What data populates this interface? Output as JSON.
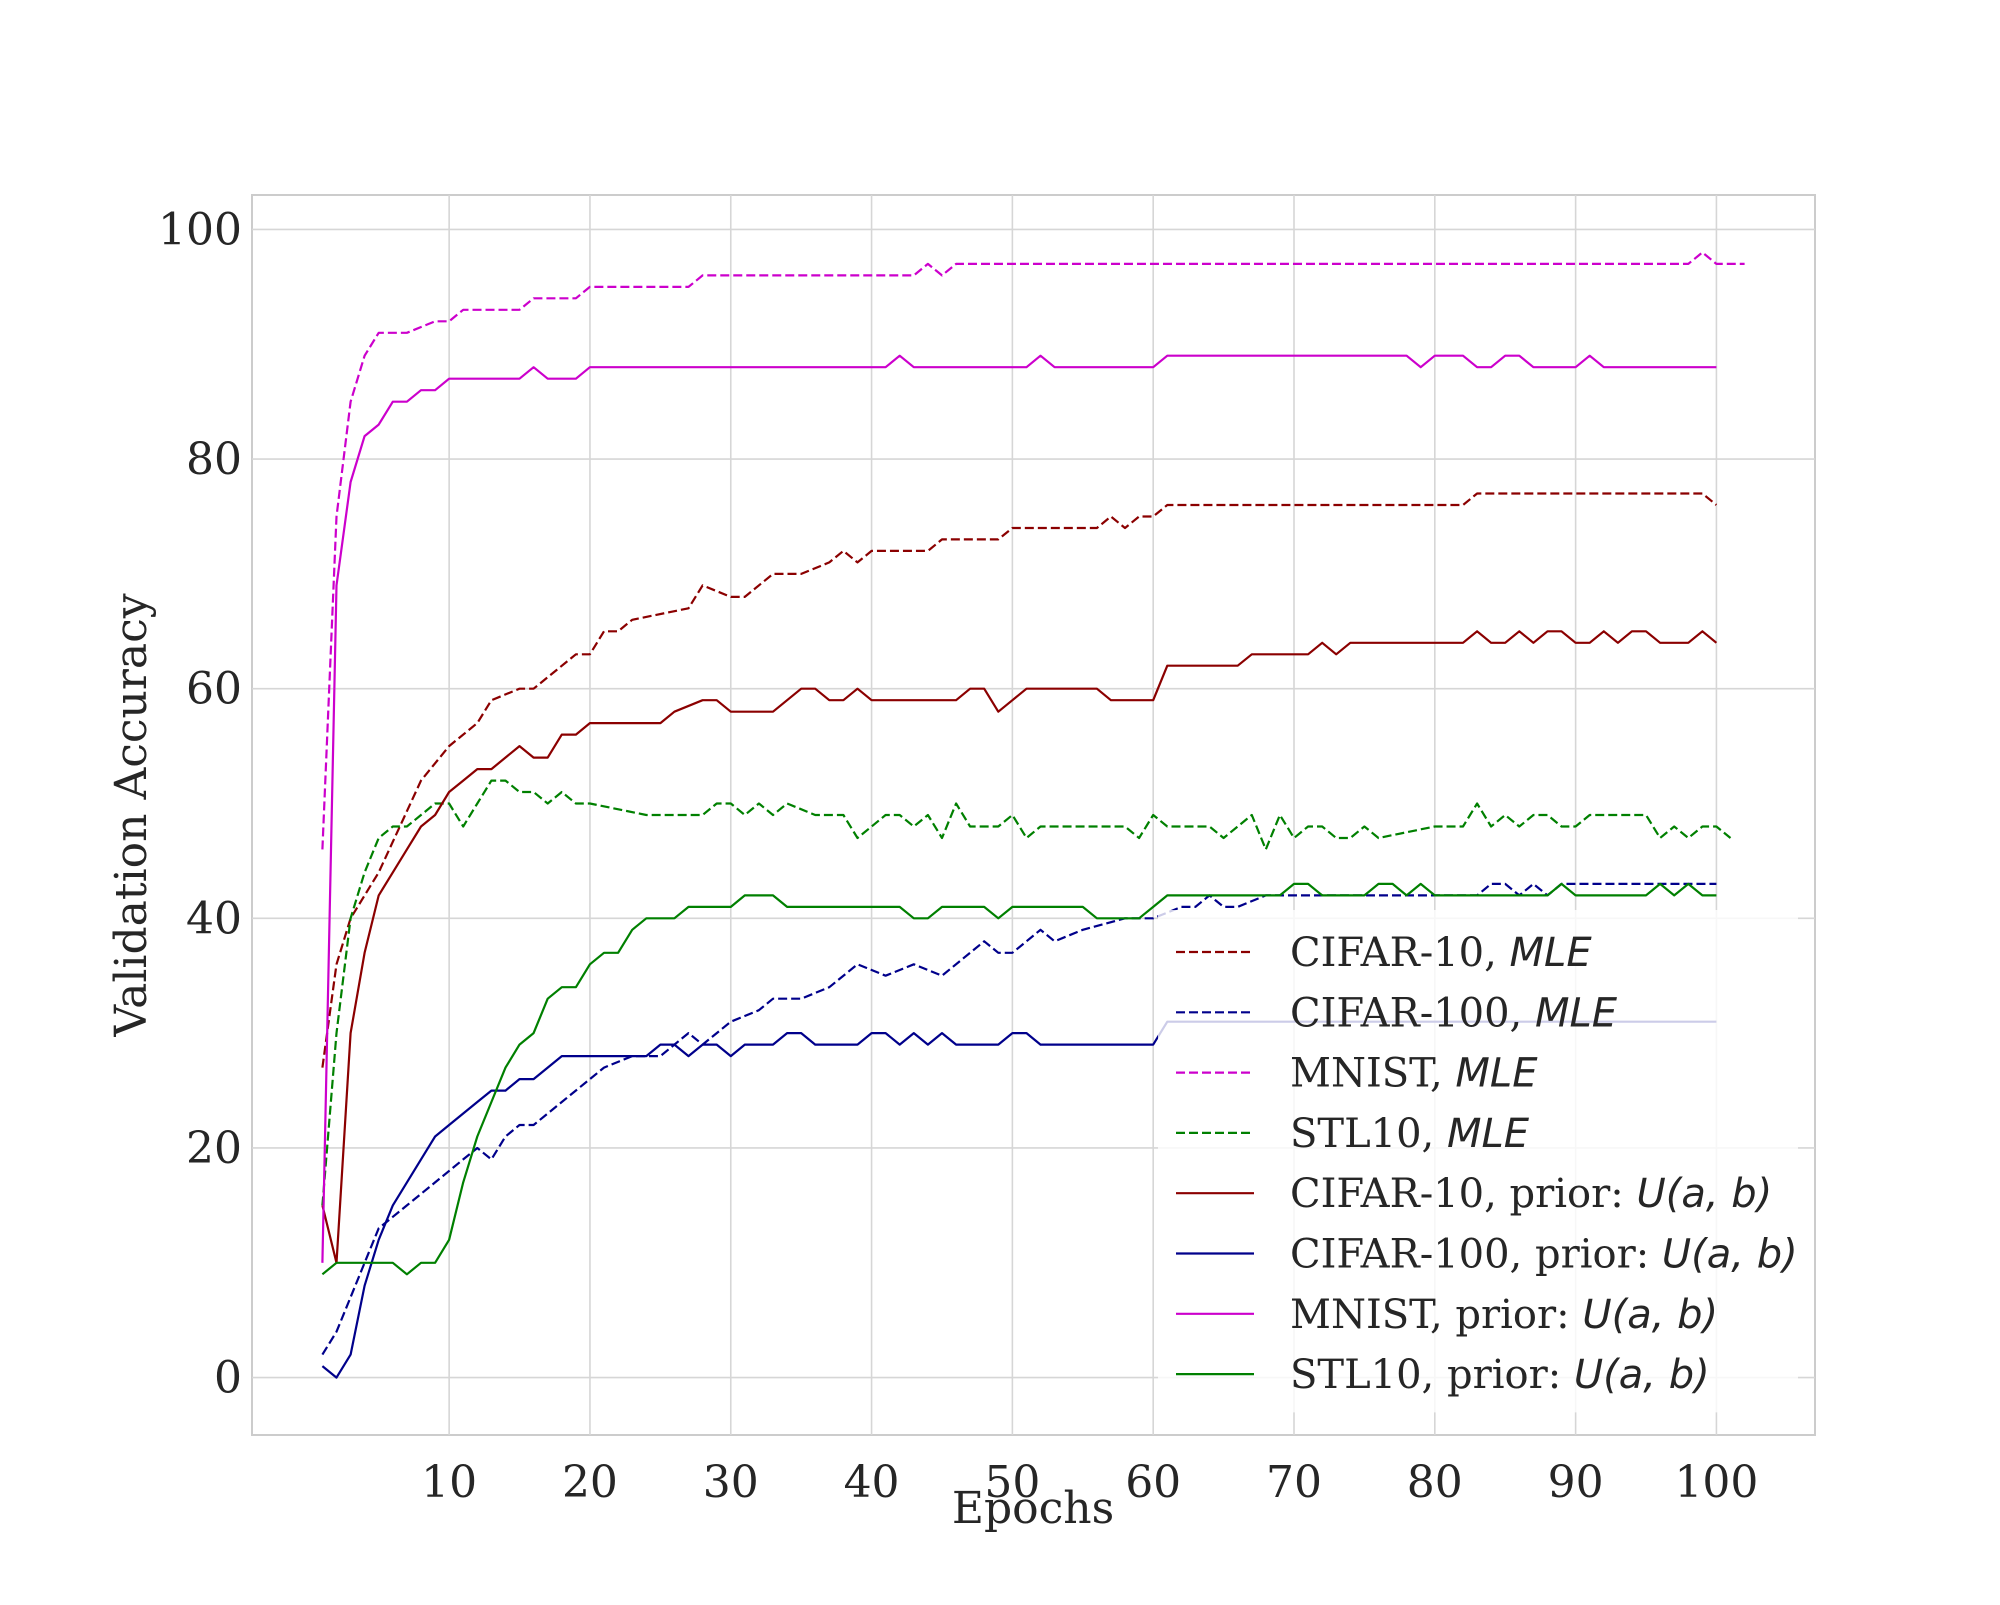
{
  "chart_data": {
    "type": "line",
    "xlabel": "Epochs",
    "ylabel": "Validation Accuracy",
    "xlim": [
      -4,
      107
    ],
    "ylim": [
      -5,
      103
    ],
    "xticks": [
      10,
      20,
      30,
      40,
      50,
      60,
      70,
      80,
      90,
      100
    ],
    "yticks": [
      0,
      20,
      40,
      60,
      80,
      100
    ],
    "grid": true,
    "legend_position": "lower-right",
    "series": [
      {
        "name": "CIFAR-10, ",
        "name_math": "MLE",
        "color": "#8b0000",
        "style": "dashed",
        "x": [
          1,
          2,
          3,
          5,
          8,
          10,
          12,
          13,
          15,
          16,
          19,
          20,
          21,
          22,
          23,
          27,
          28,
          30,
          31,
          33,
          35,
          37,
          38,
          39,
          40,
          44,
          45,
          46,
          49,
          50,
          51,
          56,
          57,
          58,
          59,
          60,
          61,
          62,
          63,
          70,
          80,
          82,
          83,
          90,
          99,
          100
        ],
        "y": [
          27,
          36,
          40,
          44,
          52,
          55,
          57,
          59,
          60,
          60,
          63,
          63,
          65,
          65,
          66,
          67,
          69,
          68,
          68,
          70,
          70,
          71,
          72,
          71,
          72,
          72,
          73,
          73,
          73,
          74,
          74,
          74,
          75,
          74,
          75,
          75,
          76,
          76,
          76,
          76,
          76,
          76,
          77,
          77,
          77,
          76
        ]
      },
      {
        "name": "CIFAR-100, ",
        "name_math": "MLE",
        "color": "#00008b",
        "style": "dashed",
        "x": [
          1,
          2,
          3,
          4,
          5,
          7,
          9,
          11,
          12,
          13,
          14,
          15,
          16,
          18,
          20,
          21,
          23,
          25,
          26,
          27,
          28,
          30,
          32,
          33,
          35,
          37,
          39,
          41,
          43,
          45,
          47,
          48,
          49,
          50,
          51,
          52,
          53,
          55,
          58,
          60,
          62,
          63,
          64,
          65,
          66,
          68,
          70,
          72,
          75,
          80,
          82,
          83,
          84,
          85,
          86,
          87,
          88,
          89,
          100
        ],
        "y": [
          2,
          4,
          7,
          10,
          13,
          15,
          17,
          19,
          20,
          19,
          21,
          22,
          22,
          24,
          26,
          27,
          28,
          28,
          29,
          30,
          29,
          31,
          32,
          33,
          33,
          34,
          36,
          35,
          36,
          35,
          37,
          38,
          37,
          37,
          38,
          39,
          38,
          39,
          40,
          40,
          41,
          41,
          42,
          41,
          41,
          42,
          42,
          42,
          42,
          42,
          42,
          42,
          43,
          43,
          42,
          43,
          42,
          43,
          43
        ]
      },
      {
        "name": "MNIST, ",
        "name_math": "MLE",
        "color": "#cc00cc",
        "style": "dashed",
        "x": [
          1,
          2,
          3,
          4,
          5,
          7,
          9,
          10,
          11,
          15,
          16,
          18,
          19,
          20,
          27,
          28,
          30,
          40,
          42,
          43,
          44,
          45,
          46,
          60,
          90,
          98,
          99,
          100,
          102
        ],
        "y": [
          46,
          75,
          85,
          89,
          91,
          91,
          92,
          92,
          93,
          93,
          94,
          94,
          94,
          95,
          95,
          96,
          96,
          96,
          96,
          96,
          97,
          96,
          97,
          97,
          97,
          97,
          98,
          97,
          97
        ]
      },
      {
        "name": "STL10, ",
        "name_math": "MLE",
        "color": "#008000",
        "style": "dashed",
        "x": [
          1,
          2,
          3,
          4,
          5,
          6,
          7,
          8,
          9,
          10,
          11,
          12,
          13,
          14,
          15,
          16,
          17,
          18,
          19,
          20,
          24,
          28,
          29,
          30,
          31,
          32,
          33,
          34,
          36,
          38,
          39,
          40,
          41,
          42,
          43,
          44,
          45,
          46,
          47,
          48,
          49,
          50,
          51,
          52,
          53,
          58,
          59,
          60,
          61,
          62,
          63,
          64,
          65,
          66,
          67,
          68,
          69,
          70,
          71,
          72,
          73,
          74,
          75,
          76,
          80,
          82,
          83,
          84,
          85,
          86,
          87,
          88,
          89,
          90,
          91,
          95,
          96,
          97,
          98,
          99,
          100,
          101
        ],
        "y": [
          15,
          30,
          40,
          44,
          47,
          48,
          48,
          49,
          50,
          50,
          48,
          50,
          52,
          52,
          51,
          51,
          50,
          51,
          50,
          50,
          49,
          49,
          50,
          50,
          49,
          50,
          49,
          50,
          49,
          49,
          47,
          48,
          49,
          49,
          48,
          49,
          47,
          50,
          48,
          48,
          48,
          49,
          47,
          48,
          48,
          48,
          47,
          49,
          48,
          48,
          48,
          48,
          47,
          48,
          49,
          46,
          49,
          47,
          48,
          48,
          47,
          47,
          48,
          47,
          48,
          48,
          50,
          48,
          49,
          48,
          49,
          49,
          48,
          48,
          49,
          49,
          47,
          48,
          47,
          48,
          48,
          47
        ]
      },
      {
        "name": "CIFAR-10, prior: ",
        "name_math": "U(a, b)",
        "color": "#8b0000",
        "style": "solid",
        "x": [
          1,
          2,
          3,
          4,
          5,
          6,
          7,
          8,
          9,
          10,
          11,
          12,
          13,
          15,
          16,
          17,
          18,
          19,
          20,
          25,
          26,
          28,
          29,
          30,
          33,
          35,
          36,
          37,
          38,
          39,
          40,
          45,
          46,
          47,
          48,
          49,
          50,
          51,
          56,
          57,
          58,
          59,
          60,
          61,
          62,
          63,
          64,
          65,
          66,
          67,
          68,
          71,
          72,
          73,
          74,
          75,
          76,
          82,
          83,
          84,
          85,
          86,
          87,
          88,
          89,
          90,
          91,
          92,
          93,
          94,
          95,
          96,
          97,
          98,
          99,
          100
        ],
        "y": [
          15,
          10,
          30,
          37,
          42,
          44,
          46,
          48,
          49,
          51,
          52,
          53,
          53,
          55,
          54,
          54,
          56,
          56,
          57,
          57,
          58,
          59,
          59,
          58,
          58,
          60,
          60,
          59,
          59,
          60,
          59,
          59,
          59,
          60,
          60,
          58,
          59,
          60,
          60,
          59,
          59,
          59,
          59,
          62,
          62,
          62,
          62,
          62,
          62,
          63,
          63,
          63,
          64,
          63,
          64,
          64,
          64,
          64,
          65,
          64,
          64,
          65,
          64,
          65,
          65,
          64,
          64,
          65,
          64,
          65,
          65,
          64,
          64,
          64,
          65,
          64
        ]
      },
      {
        "name": "CIFAR-100, prior: ",
        "name_math": "U(a, b)",
        "color": "#00008b",
        "style": "solid",
        "x": [
          1,
          2,
          3,
          4,
          5,
          6,
          7,
          8,
          9,
          10,
          11,
          12,
          13,
          14,
          15,
          16,
          17,
          18,
          19,
          20,
          21,
          22,
          23,
          24,
          25,
          26,
          27,
          28,
          29,
          30,
          31,
          32,
          33,
          34,
          35,
          36,
          37,
          38,
          39,
          40,
          41,
          42,
          43,
          44,
          45,
          46,
          47,
          48,
          49,
          50,
          51,
          52,
          53,
          54,
          55,
          56,
          57,
          58,
          59,
          60,
          61,
          62,
          100
        ],
        "y": [
          1,
          0,
          2,
          8,
          12,
          15,
          17,
          19,
          21,
          22,
          23,
          24,
          25,
          25,
          26,
          26,
          27,
          28,
          28,
          28,
          28,
          28,
          28,
          28,
          29,
          29,
          28,
          29,
          29,
          28,
          29,
          29,
          29,
          30,
          30,
          29,
          29,
          29,
          29,
          30,
          30,
          29,
          30,
          29,
          30,
          29,
          29,
          29,
          29,
          30,
          30,
          29,
          29,
          29,
          29,
          29,
          29,
          29,
          29,
          29,
          31,
          31,
          31
        ]
      },
      {
        "name": "MNIST, prior: ",
        "name_math": "U(a, b)",
        "color": "#cc00cc",
        "style": "solid",
        "x": [
          1,
          2,
          3,
          4,
          5,
          6,
          7,
          8,
          9,
          10,
          15,
          16,
          17,
          19,
          20,
          41,
          42,
          43,
          50,
          51,
          52,
          53,
          60,
          61,
          78,
          79,
          80,
          81,
          82,
          83,
          84,
          85,
          86,
          87,
          88,
          90,
          91,
          92,
          100
        ],
        "y": [
          10,
          69,
          78,
          82,
          83,
          85,
          85,
          86,
          86,
          87,
          87,
          88,
          87,
          87,
          88,
          88,
          89,
          88,
          88,
          88,
          89,
          88,
          88,
          89,
          89,
          88,
          89,
          89,
          89,
          88,
          88,
          89,
          89,
          88,
          88,
          88,
          89,
          88,
          88
        ]
      },
      {
        "name": "STL10, prior: ",
        "name_math": "U(a, b)",
        "color": "#008000",
        "style": "solid",
        "x": [
          1,
          2,
          3,
          4,
          5,
          6,
          7,
          8,
          9,
          10,
          11,
          12,
          13,
          14,
          15,
          16,
          17,
          18,
          19,
          20,
          21,
          22,
          23,
          24,
          25,
          26,
          27,
          28,
          29,
          30,
          31,
          32,
          33,
          34,
          35,
          36,
          37,
          38,
          39,
          40,
          41,
          42,
          43,
          44,
          45,
          46,
          47,
          48,
          49,
          50,
          51,
          52,
          53,
          54,
          55,
          56,
          57,
          58,
          59,
          60,
          61,
          62,
          63,
          64,
          65,
          66,
          67,
          68,
          69,
          70,
          71,
          72,
          73,
          74,
          75,
          76,
          77,
          78,
          79,
          80,
          81,
          82,
          83,
          84,
          85,
          86,
          87,
          88,
          89,
          90,
          91,
          92,
          93,
          94,
          95,
          96,
          97,
          98,
          99,
          100
        ],
        "y": [
          9,
          10,
          10,
          10,
          10,
          10,
          9,
          10,
          10,
          12,
          17,
          21,
          24,
          27,
          29,
          30,
          33,
          34,
          34,
          36,
          37,
          37,
          39,
          40,
          40,
          40,
          41,
          41,
          41,
          41,
          42,
          42,
          42,
          41,
          41,
          41,
          41,
          41,
          41,
          41,
          41,
          41,
          40,
          40,
          41,
          41,
          41,
          41,
          40,
          41,
          41,
          41,
          41,
          41,
          41,
          40,
          40,
          40,
          40,
          41,
          42,
          42,
          42,
          42,
          42,
          42,
          42,
          42,
          42,
          43,
          43,
          42,
          42,
          42,
          42,
          43,
          43,
          42,
          43,
          42,
          42,
          42,
          42,
          42,
          42,
          42,
          42,
          42,
          43,
          42,
          42,
          42,
          42,
          42,
          42,
          43,
          42,
          43,
          42,
          42
        ]
      }
    ]
  }
}
